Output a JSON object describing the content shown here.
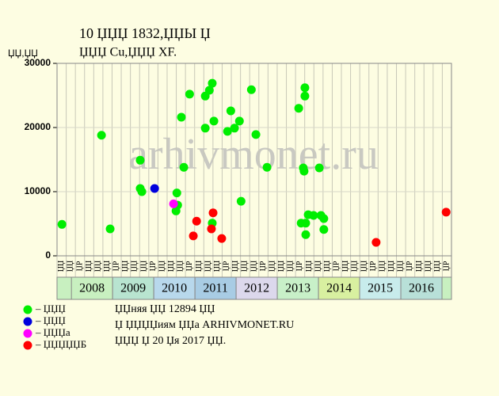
{
  "chart_data": {
    "type": "scatter",
    "title": "10 ЏЏЏ 1832,ЏЏЫ Џ",
    "subtitle": "ЏЏЏ Cu,ЏЏЏ XF.",
    "y_label": "ЏЏ,ЏЏ",
    "watermark": "arhivmonet.ru",
    "notes": [
      "ЏЏняя ЏЏ 12894 ЏЏ",
      "Џ ЏЏЏЏиям ЏЏа ARHIVMONET.RU",
      "ЏЏЏ Џ 20 Џя 2017 ЏЏ."
    ],
    "xlim": [
      2007.65,
      2017.23
    ],
    "ylim": [
      0,
      30000
    ],
    "yticks": [
      0,
      10000,
      20000,
      30000
    ],
    "grid": true,
    "column_labels": [
      "ЏЏ",
      "ЏЏ",
      "ЏР",
      "ЏЏ",
      "ЏЏ",
      "ЏЏ",
      "ЏР",
      "ЏЏ",
      "ЏЏ",
      "ЏЏ",
      "ЏР",
      "ЏЏ",
      "ЏЏ",
      "ЏЏ",
      "ЏР",
      "ЏЏ",
      "ЏЏ",
      "ЏЏ",
      "ЏР",
      "ЏЏ",
      "ЏЏ",
      "ЏЏ",
      "ЏР",
      "ЏЏ",
      "ЏЏ",
      "ЏЏ",
      "ЏР",
      "ЏЏ",
      "ЏЏ",
      "ЏЏ",
      "ЏР",
      "ЏЏ",
      "ЏЏ",
      "ЏЏ",
      "ЏР",
      "ЏЏ",
      "ЏЏ",
      "ЏЏ",
      "ЏР",
      "ЏЏ",
      "ЏЏ",
      "ЏЏ",
      "ЏР"
    ],
    "year_bands": [
      {
        "label": "2008",
        "color": "#c8f0c0"
      },
      {
        "label": "2009",
        "color": "#b8e4d0"
      },
      {
        "label": "2010",
        "color": "#b8d8ec"
      },
      {
        "label": "2011",
        "color": "#a8cce4"
      },
      {
        "label": "2012",
        "color": "#dcd8ec"
      },
      {
        "label": "2013",
        "color": "#c8f0c8"
      },
      {
        "label": "2014",
        "color": "#d8f0a0"
      },
      {
        "label": "2015",
        "color": "#c8ecec"
      },
      {
        "label": "2016",
        "color": "#b8e0d8"
      }
    ],
    "series": [
      {
        "name": "– ЏЏЏ",
        "color": "#00ee00",
        "x": [
          2007.77,
          2008.73,
          2008.94,
          2009.67,
          2009.67,
          2009.71,
          2010.54,
          2010.58,
          2010.56,
          2010.67,
          2010.73,
          2010.87,
          2011.25,
          2011.25,
          2011.35,
          2011.42,
          2011.42,
          2011.46,
          2011.79,
          2011.87,
          2011.96,
          2012.08,
          2012.12,
          2012.37,
          2012.48,
          2012.75,
          2013.52,
          2013.58,
          2013.67,
          2013.67,
          2013.63,
          2013.65,
          2013.69,
          2013.69,
          2013.75,
          2013.88,
          2014.02,
          2014.06,
          2014.13,
          2014.13
        ],
        "values": [
          4900,
          18800,
          4200,
          14900,
          10500,
          10000,
          7000,
          7900,
          9800,
          21600,
          13800,
          25200,
          19900,
          24900,
          25800,
          26900,
          5100,
          21000,
          19400,
          22600,
          19900,
          21000,
          8500,
          25900,
          18900,
          13800,
          23000,
          5100,
          26200,
          24900,
          13700,
          13200,
          5100,
          3300,
          6400,
          6300,
          13700,
          6300,
          5800,
          4100
        ]
      },
      {
        "name": "– ЏЏЏ",
        "color": "#0000dd",
        "x": [
          2010.02
        ],
        "values": [
          10500
        ]
      },
      {
        "name": "– ЏЏЏа",
        "color": "#ff00ff",
        "x": [
          2010.48
        ],
        "values": [
          8100
        ]
      },
      {
        "name": "– ЏЏЏЏЏБ",
        "color": "#ff0000",
        "x": [
          2010.96,
          2011.04,
          2011.4,
          2011.44,
          2011.65,
          2015.4,
          2017.1
        ],
        "values": [
          3100,
          5400,
          4200,
          6700,
          2700,
          2100,
          6800
        ]
      }
    ]
  }
}
